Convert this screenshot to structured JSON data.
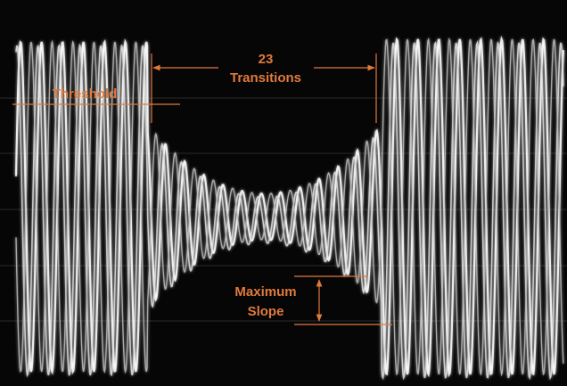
{
  "annotations": {
    "count": "23",
    "count_label": "Transitions",
    "threshold": "Threshold",
    "slope_line1": "Maximum",
    "slope_line2": "Slope"
  }
}
